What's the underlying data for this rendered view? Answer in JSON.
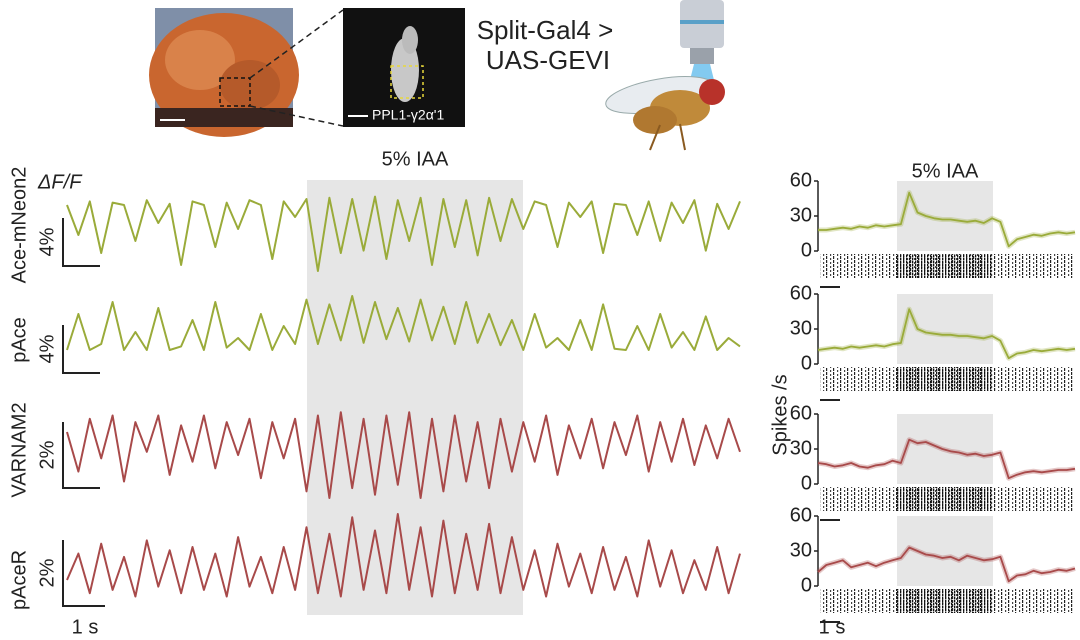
{
  "header": {
    "driver": "Split-Gal4 >",
    "reporter": "UAS-GEVI",
    "roi_label": "PPL1-γ2α'1"
  },
  "chart_data": [
    {
      "type": "trace",
      "annotation": "5% IAA",
      "ylabel": "ΔF/F",
      "time_scale_bar": "1 s",
      "series": [
        {
          "name": "Ace-mNeon2",
          "color": "#9aab3a",
          "scale_bar": {
            "value": 4,
            "label": "4%"
          },
          "values": [
            0,
            -2.5,
            0.3,
            -4,
            0.2,
            0,
            -3,
            0.4,
            -1.5,
            0.1,
            -5,
            0.3,
            0,
            -3.5,
            0.2,
            -2,
            0.4,
            0,
            -4.5,
            0.3,
            -1,
            0.5,
            -5.5,
            0.6,
            -4,
            0.5,
            -3.8,
            0.7,
            -4.5,
            0.4,
            -3,
            0.6,
            -5,
            0.5,
            -3.5,
            0.4,
            -4.2,
            0.6,
            -3,
            0.5,
            -2,
            0.3,
            0,
            -3.5,
            0.2,
            -1,
            0.3,
            -4,
            0.1,
            0,
            -2.5,
            0.3,
            -3,
            0.2,
            -1.5,
            0.4,
            -3.8,
            0.1,
            -2,
            0.3
          ]
        },
        {
          "name": "pAce",
          "color": "#9aab3a",
          "scale_bar": {
            "value": 4,
            "label": "4%"
          },
          "values": [
            0,
            3,
            0,
            0.5,
            4,
            0,
            1.5,
            0,
            3.5,
            0,
            0.3,
            2.5,
            0,
            4,
            0.2,
            1,
            0,
            3,
            0,
            2,
            0.5,
            4.2,
            0.5,
            3.8,
            0.8,
            4.5,
            0.6,
            4,
            0.9,
            3.5,
            0.7,
            4.2,
            0.8,
            3.6,
            0.5,
            4,
            0.6,
            3,
            0.4,
            2.5,
            0,
            3,
            0.2,
            1,
            0,
            2.5,
            0,
            3.8,
            0.1,
            0,
            2,
            0,
            3,
            0.2,
            1.5,
            0,
            2.8,
            0,
            1,
            0.3
          ]
        },
        {
          "name": "VARNAM2",
          "color": "#a84a4a",
          "scale_bar": {
            "value": 2,
            "label": "2%"
          },
          "values": [
            0,
            -1.2,
            0.4,
            -0.8,
            0.5,
            -1.5,
            0.3,
            -0.6,
            0.5,
            -1.3,
            0.2,
            -0.9,
            0.5,
            -1.1,
            0.3,
            -0.7,
            0.4,
            -1.4,
            0.3,
            -0.8,
            0.4,
            -1.8,
            0.5,
            -2,
            0.6,
            -1.7,
            0.4,
            -1.9,
            0.5,
            -1.6,
            0.6,
            -2,
            0.4,
            -1.8,
            0.5,
            -1.5,
            0.3,
            -1.7,
            0.4,
            -1.2,
            0.3,
            -0.9,
            0.5,
            -1.3,
            0.2,
            -0.8,
            0.4,
            -1.1,
            0.3,
            -0.7,
            0.5,
            -1.2,
            0.3,
            -0.9,
            0.4,
            -1,
            0.2,
            -0.8,
            0.4,
            -0.6
          ]
        },
        {
          "name": "pAceR",
          "color": "#a84a4a",
          "scale_bar": {
            "value": 2,
            "label": "2%"
          },
          "values": [
            0,
            0.8,
            -0.4,
            1.1,
            -0.3,
            0.7,
            -0.5,
            1.2,
            -0.2,
            0.9,
            -0.4,
            1,
            -0.3,
            0.8,
            -0.5,
            1.3,
            -0.2,
            0.7,
            -0.4,
            1,
            -0.3,
            1.6,
            -0.4,
            1.4,
            -0.5,
            1.9,
            -0.3,
            1.5,
            -0.4,
            2,
            -0.3,
            1.6,
            -0.5,
            1.8,
            -0.4,
            1.4,
            -0.3,
            1.7,
            -0.4,
            1.3,
            -0.3,
            0.9,
            -0.5,
            1.1,
            -0.2,
            0.8,
            -0.4,
            1,
            -0.3,
            0.7,
            -0.5,
            1.2,
            -0.2,
            0.9,
            -0.4,
            0.6,
            -0.3,
            1,
            -0.4,
            0.8
          ]
        }
      ]
    },
    {
      "type": "line",
      "annotation": "5% IAA",
      "ylabel": "Spikes /s",
      "time_scale_bar": "1 s",
      "ylim": [
        0,
        60
      ],
      "yticks": [
        0,
        30,
        60
      ],
      "series": [
        {
          "color": "#9aab3a",
          "values": [
            18,
            18,
            19,
            20,
            19,
            21,
            20,
            22,
            21,
            22,
            23,
            50,
            33,
            30,
            28,
            27,
            27,
            26,
            25,
            26,
            24,
            28,
            25,
            4,
            10,
            12,
            14,
            13,
            15,
            16,
            15,
            16
          ]
        },
        {
          "color": "#9aab3a",
          "values": [
            12,
            13,
            14,
            13,
            15,
            14,
            15,
            16,
            15,
            17,
            18,
            47,
            30,
            27,
            26,
            25,
            25,
            24,
            24,
            23,
            22,
            24,
            20,
            5,
            9,
            10,
            12,
            11,
            12,
            13,
            12,
            13
          ]
        },
        {
          "color": "#a84a4a",
          "values": [
            18,
            17,
            15,
            16,
            18,
            15,
            14,
            16,
            17,
            20,
            18,
            38,
            35,
            36,
            33,
            30,
            28,
            27,
            25,
            26,
            24,
            25,
            27,
            5,
            8,
            10,
            11,
            10,
            11,
            12,
            12,
            13
          ]
        },
        {
          "color": "#a84a4a",
          "values": [
            12,
            18,
            20,
            22,
            16,
            18,
            20,
            17,
            20,
            22,
            24,
            33,
            30,
            27,
            26,
            24,
            25,
            22,
            26,
            24,
            22,
            23,
            25,
            4,
            9,
            10,
            13,
            11,
            12,
            14,
            13,
            15
          ]
        }
      ]
    }
  ]
}
